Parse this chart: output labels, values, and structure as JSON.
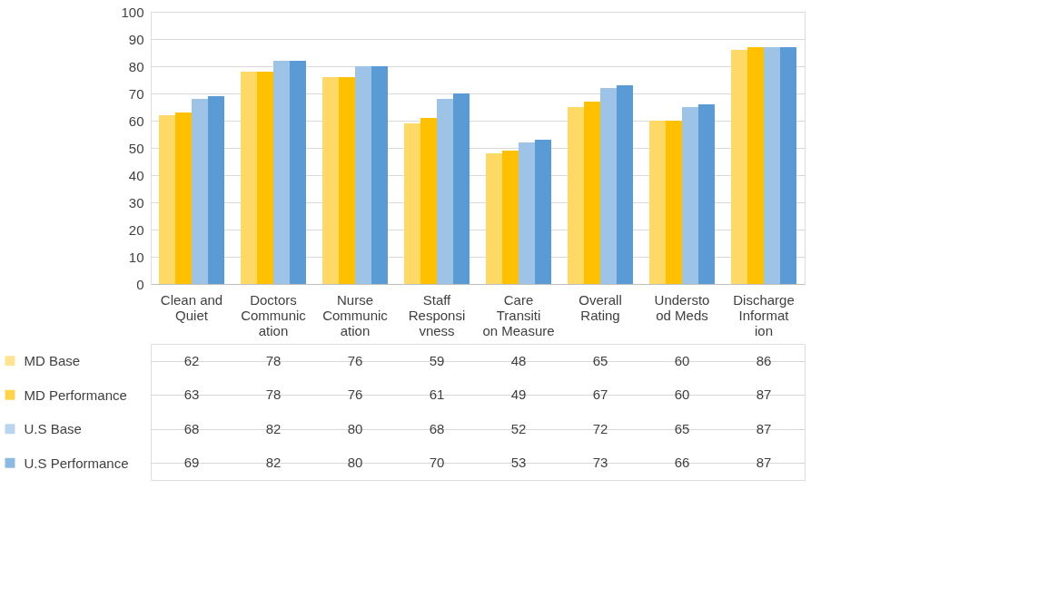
{
  "chart_data": {
    "type": "bar",
    "categories": [
      "Clean and Quiet",
      "Doctors Communication",
      "Nurse Communication",
      "Staff Responsivness",
      "Care Transition Measure",
      "Overall Rating",
      "Understood Meds",
      "Discharge Information"
    ],
    "series": [
      {
        "name": "MD Base",
        "color": "#ffd966",
        "values": [
          62,
          78,
          76,
          59,
          48,
          65,
          60,
          86
        ]
      },
      {
        "name": "MD Performance",
        "color": "#ffc000",
        "values": [
          63,
          78,
          76,
          61,
          49,
          67,
          60,
          87
        ]
      },
      {
        "name": "U.S Base",
        "color": "#9dc3e6",
        "values": [
          68,
          82,
          80,
          68,
          52,
          72,
          65,
          87
        ]
      },
      {
        "name": "U.S Performance",
        "color": "#5b9bd5",
        "values": [
          69,
          82,
          80,
          70,
          53,
          73,
          66,
          87
        ]
      }
    ],
    "ylim": [
      0,
      100
    ],
    "yticks": [
      0,
      10,
      20,
      30,
      40,
      50,
      60,
      70,
      80,
      90,
      100
    ],
    "grid": "y",
    "data_labels": true,
    "legend": "bottom left"
  }
}
